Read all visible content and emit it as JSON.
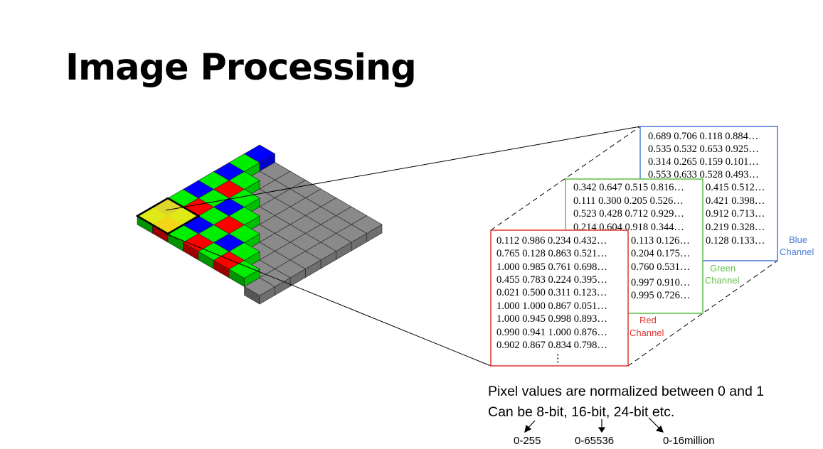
{
  "title": "Image Processing",
  "matrices": {
    "blue": {
      "label_line1": "Blue",
      "label_line2": "Channel",
      "color": "#4a7bd8",
      "rows": [
        "0.689 0.706 0.118 0.884…",
        "0.535 0.532 0.653 0.925…",
        "0.314 0.265 0.159 0.101…",
        "0.553 0.633 0.528 0.493…"
      ],
      "right_column": [
        "0.415 0.512…",
        "0.421 0.398…",
        "0.912 0.713…",
        "0.219 0.328…",
        "0.128 0.133…"
      ]
    },
    "green": {
      "label_line1": "Green",
      "label_line2": "Channel",
      "color": "#5cbf46",
      "rows": [
        "0.342 0.647 0.515 0.816…",
        "0.111 0.300 0.205 0.526…",
        "0.523 0.428 0.712 0.929…",
        "0.214 0.604 0.918 0.344…"
      ],
      "right_column": [
        "0.113 0.126…",
        "0.204 0.175…",
        "0.760 0.531…",
        "0.997 0.910…",
        "0.995 0.726…"
      ]
    },
    "red": {
      "label_line1": "Red",
      "label_line2": "Channel",
      "color": "#e0342f",
      "rows": [
        "0.112 0.986 0.234 0.432…",
        "0.765 0.128 0.863 0.521…",
        "1.000 0.985 0.761 0.698…",
        "0.455 0.783 0.224 0.395…",
        "0.021 0.500 0.311 0.123…",
        "1.000 1.000 0.867 0.051…",
        "1.000 0.945 0.998 0.893…",
        "0.990 0.941 1.000 0.876…",
        "0.902 0.867 0.834 0.798…"
      ],
      "vertical_ellipsis": "⋮"
    }
  },
  "caption": {
    "line1": "Pixel values are normalized between 0 and 1",
    "line2": "Can be 8-bit, 16-bit, 24-bit etc."
  },
  "ranges": {
    "bit8": "0-255",
    "bit16": "0-65536",
    "bit24": "0-16million"
  },
  "bayer_colors": {
    "red": "#ff0000",
    "green": "#00ee00",
    "blue": "#0000ff",
    "gray": "#8a8a8a",
    "highlight": "#f2e81a"
  }
}
